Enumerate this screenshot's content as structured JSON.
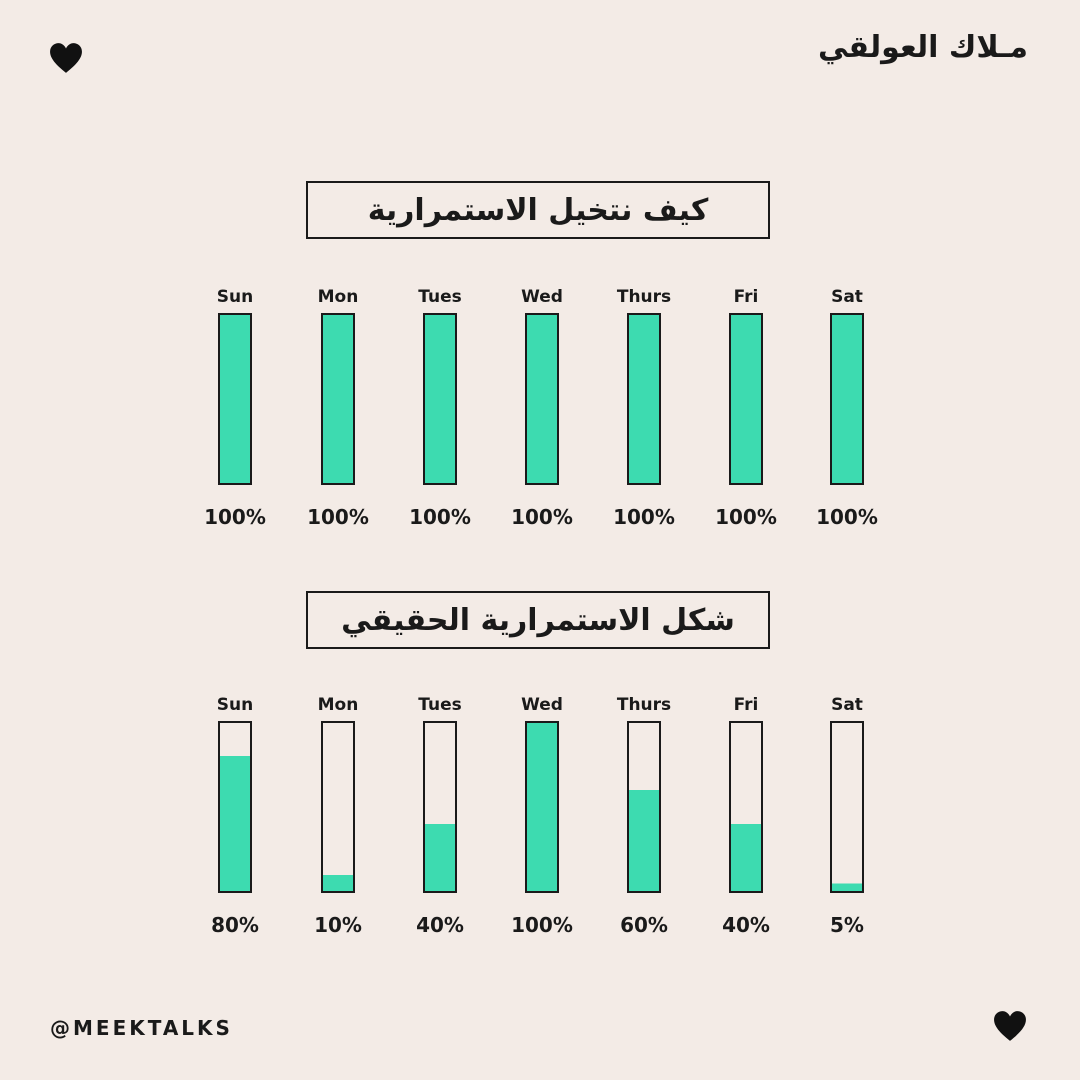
{
  "header": {
    "author": "مـلاك العولقي"
  },
  "footer": {
    "handle": "@MEEKTALKS"
  },
  "icons": {
    "top": "heart-icon",
    "bottom": "heart-icon"
  },
  "colors": {
    "bar_fill": "#3ddbb0",
    "bar_outline": "#1a1a1a",
    "background": "#f3ebe6"
  },
  "chart_data": [
    {
      "type": "bar",
      "title": "كيف نتخيل الاستمرارية",
      "categories": [
        "Sun",
        "Mon",
        "Tues",
        "Wed",
        "Thurs",
        "Fri",
        "Sat"
      ],
      "values": [
        100,
        100,
        100,
        100,
        100,
        100,
        100
      ],
      "value_labels": [
        "100%",
        "100%",
        "100%",
        "100%",
        "100%",
        "100%",
        "100%"
      ],
      "ylim": [
        0,
        100
      ]
    },
    {
      "type": "bar",
      "title": "شكل الاستمرارية الحقيقي",
      "categories": [
        "Sun",
        "Mon",
        "Tues",
        "Wed",
        "Thurs",
        "Fri",
        "Sat"
      ],
      "values": [
        80,
        10,
        40,
        100,
        60,
        40,
        5
      ],
      "value_labels": [
        "80%",
        "10%",
        "40%",
        "100%",
        "60%",
        "40%",
        "5%"
      ],
      "ylim": [
        0,
        100
      ]
    }
  ]
}
